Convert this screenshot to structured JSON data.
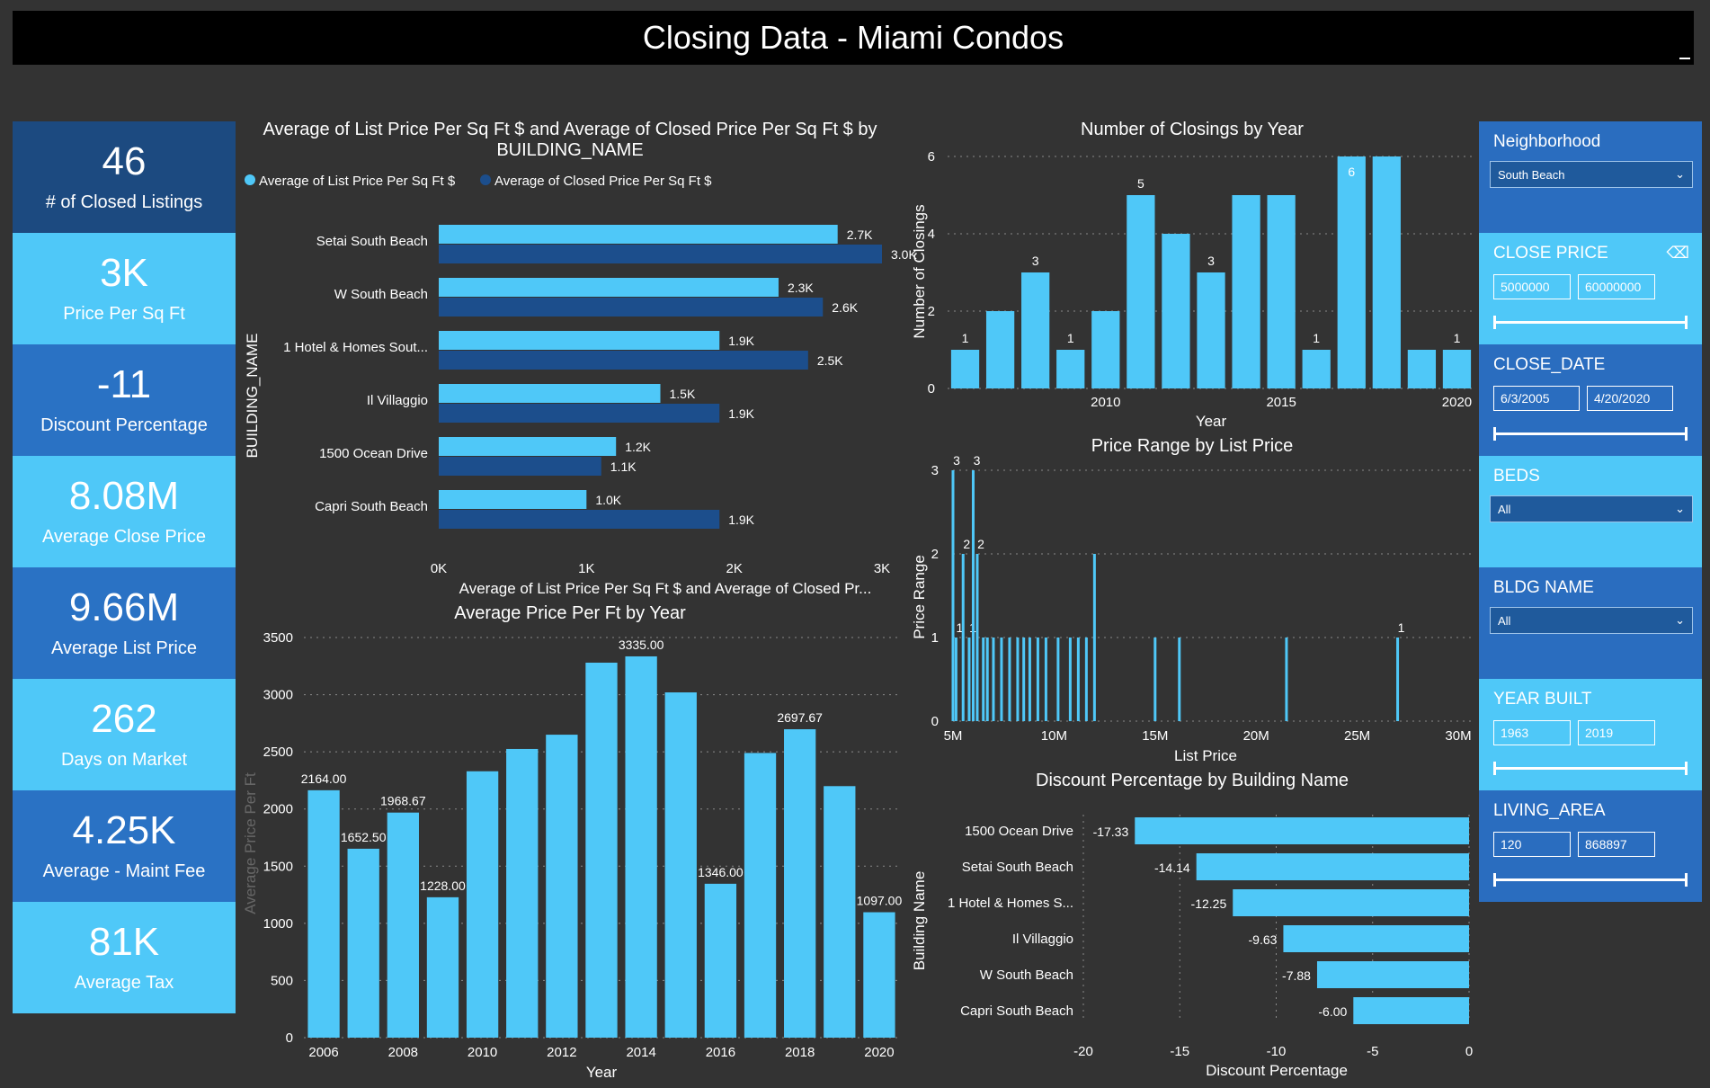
{
  "title": "Closing Data - Miami Condos",
  "colors": {
    "light": "#4fc8f8",
    "dark": "#1c4e8c",
    "mid": "#2a72c4",
    "kpi_dark": "#1c4a80",
    "slicer": "#2a6dbf",
    "bg": "#333333"
  },
  "kpis": [
    {
      "value": "46",
      "label": "# of Closed Listings"
    },
    {
      "value": "3K",
      "label": "Price Per Sq Ft"
    },
    {
      "value": "-11",
      "label": "Discount Percentage"
    },
    {
      "value": "8.08M",
      "label": "Average Close Price"
    },
    {
      "value": "9.66M",
      "label": "Average List Price"
    },
    {
      "value": "262",
      "label": "Days on Market"
    },
    {
      "value": "4.25K",
      "label": "Average - Maint Fee"
    },
    {
      "value": "81K",
      "label": "Average Tax"
    }
  ],
  "building_chart": {
    "title_line1": "Average of List Price Per Sq Ft $ and Average of Closed Price Per Sq Ft $ by",
    "title_line2": "BUILDING_NAME",
    "legend": [
      "Average of List Price Per Sq Ft $",
      "Average of Closed Price Per Sq Ft $"
    ],
    "ylabel": "BUILDING_NAME",
    "xlabel": "Average of List Price Per Sq Ft $ and Average of Closed Pr...",
    "xticks": [
      "0K",
      "1K",
      "2K",
      "3K"
    ]
  },
  "closings_chart": {
    "title": "Number of Closings by Year",
    "xlabel": "Year",
    "ylabel": "Number of Closings",
    "yticks": [
      "0",
      "2",
      "4",
      "6"
    ],
    "xticks": [
      "2010",
      "2015",
      "2020"
    ]
  },
  "price_year_chart": {
    "title": "Average Price Per Ft by Year",
    "xlabel": "Year",
    "ylabel": "Average Price Per Ft",
    "yticks": [
      "0",
      "500",
      "1000",
      "1500",
      "2000",
      "2500",
      "3000",
      "3500"
    ],
    "xticks": [
      "2006",
      "2008",
      "2010",
      "2012",
      "2014",
      "2016",
      "2018",
      "2020"
    ]
  },
  "range_chart": {
    "title": "Price Range by List Price",
    "xlabel": "List Price",
    "ylabel": "Price Range",
    "yticks": [
      "0",
      "1",
      "2",
      "3"
    ],
    "xticks": [
      "5M",
      "10M",
      "15M",
      "20M",
      "25M",
      "30M"
    ]
  },
  "discount_chart": {
    "title": "Discount Percentage by Building Name",
    "xlabel": "Discount Percentage",
    "ylabel": "Building Name",
    "xticks": [
      "-20",
      "-15",
      "-10",
      "-5",
      "0"
    ]
  },
  "slicers": {
    "neighborhood": {
      "title": "Neighborhood",
      "value": "South Beach"
    },
    "close_price": {
      "title": "CLOSE PRICE",
      "min": "5000000",
      "max": "60000000"
    },
    "close_date": {
      "title": "CLOSE_DATE",
      "min": "6/3/2005",
      "max": "4/20/2020"
    },
    "beds": {
      "title": "BEDS",
      "value": "All"
    },
    "bldg_name": {
      "title": "BLDG NAME",
      "value": "All"
    },
    "year_built": {
      "title": "YEAR BUILT",
      "min": "1963",
      "max": "2019"
    },
    "living_area": {
      "title": "LIVING_AREA",
      "min": "120",
      "max": "868897"
    }
  },
  "chart_data": [
    {
      "type": "bar",
      "orientation": "horizontal",
      "categories": [
        "Setai South Beach",
        "W South Beach",
        "1 Hotel & Homes Sout...",
        "Il Villaggio",
        "1500 Ocean Drive",
        "Capri South Beach"
      ],
      "series": [
        {
          "name": "Average of List Price Per Sq Ft $",
          "values": [
            2700,
            2300,
            1900,
            1500,
            1200,
            1000
          ],
          "labels": [
            "2.7K",
            "2.3K",
            "1.9K",
            "1.5K",
            "1.2K",
            "1.0K"
          ]
        },
        {
          "name": "Average of Closed Price Per Sq Ft $",
          "values": [
            3000,
            2600,
            2500,
            1900,
            1100,
            1900
          ],
          "labels": [
            "3.0K",
            "2.6K",
            "2.5K",
            "1.9K",
            "1.1K",
            "1.9K"
          ]
        }
      ],
      "xlim": [
        0,
        3000
      ]
    },
    {
      "type": "bar",
      "x": [
        2006,
        2007,
        2008,
        2009,
        2010,
        2011,
        2012,
        2013,
        2014,
        2015,
        2016,
        2017,
        2018,
        2019,
        2020
      ],
      "values": [
        1,
        2,
        3,
        1,
        2,
        5,
        4,
        3,
        5,
        5,
        1,
        6,
        6,
        1,
        1
      ],
      "labels": [
        "1",
        "",
        "3",
        "1",
        "",
        "5",
        "",
        "3",
        "",
        "",
        "1",
        "6",
        "",
        "",
        "1"
      ],
      "ylim": [
        0,
        6
      ]
    },
    {
      "type": "bar",
      "x": [
        2006,
        2007,
        2008,
        2009,
        2010,
        2011,
        2012,
        2013,
        2014,
        2015,
        2016,
        2017,
        2018,
        2019,
        2020
      ],
      "values": [
        2164,
        1652.5,
        1968.67,
        1228,
        2330,
        2525,
        2650,
        3280,
        3335,
        3020,
        1346,
        2490,
        2697.67,
        2200,
        1097
      ],
      "labels": [
        "2164.00",
        "1652.50",
        "1968.67",
        "1228.00",
        "",
        "",
        "",
        "",
        "3335.00",
        "",
        "1346.00",
        "",
        "2697.67",
        "",
        "1097.00"
      ],
      "ylim": [
        0,
        3500
      ]
    },
    {
      "type": "bar",
      "x": [
        5.0,
        5.15,
        5.5,
        5.8,
        6.0,
        6.2,
        6.5,
        6.7,
        7.0,
        7.4,
        7.8,
        8.2,
        8.5,
        8.8,
        9.2,
        9.6,
        10.2,
        10.8,
        11.2,
        11.6,
        12.0,
        15.0,
        16.2,
        21.5,
        27.0
      ],
      "values": [
        3,
        1,
        2,
        1,
        3,
        2,
        1,
        1,
        1,
        1,
        1,
        1,
        1,
        1,
        1,
        1,
        1,
        1,
        1,
        1,
        2,
        1,
        1,
        1,
        1
      ],
      "labels": [
        "3",
        "1",
        "2",
        "1",
        "3",
        "2",
        "",
        "",
        "",
        "",
        "",
        "",
        "",
        "",
        "",
        "",
        "",
        "",
        "",
        "",
        "",
        "",
        "",
        "",
        "1"
      ],
      "xlim": [
        5,
        30
      ],
      "ylim": [
        0,
        3
      ]
    },
    {
      "type": "bar",
      "orientation": "horizontal",
      "categories": [
        "1500 Ocean Drive",
        "Setai South Beach",
        "1 Hotel & Homes S...",
        "Il Villaggio",
        "W South Beach",
        "Capri South Beach"
      ],
      "values": [
        -17.33,
        -14.14,
        -12.25,
        -9.63,
        -7.88,
        -6.0
      ],
      "labels": [
        "-17.33",
        "-14.14",
        "-12.25",
        "-9.63",
        "-7.88",
        "-6.00"
      ],
      "xlim": [
        -20,
        0
      ]
    }
  ]
}
